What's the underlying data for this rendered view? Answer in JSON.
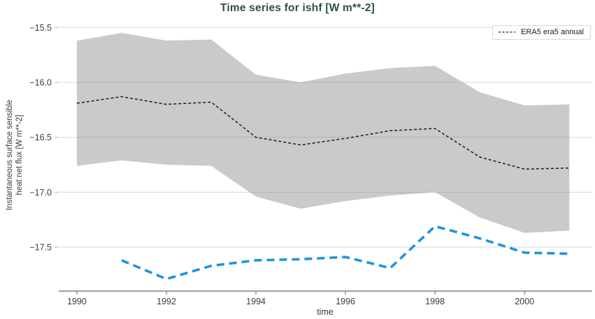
{
  "chart_data": {
    "type": "line",
    "title": "Time series for ishf [W m**-2]",
    "xlabel": "time",
    "ylabel_lines": [
      "Instantaneous surface sensible",
      "heat net flux [W m**-2]"
    ],
    "xlim": [
      1989.61,
      2001.48
    ],
    "ylim": [
      -17.9,
      -15.46
    ],
    "grid": "horizontal-only",
    "x_ticks": {
      "values": [
        1990,
        1992,
        1994,
        1996,
        1998,
        2000
      ],
      "labels": [
        "1990",
        "1992",
        "1994",
        "1996",
        "1998",
        "2000"
      ]
    },
    "y_ticks": {
      "values": [
        -15.5,
        -16.0,
        -16.5,
        -17.0,
        -17.5
      ],
      "labels": [
        "−15.5",
        "−16.0",
        "−16.5",
        "−17.0",
        "−17.5"
      ]
    },
    "legend": {
      "position": "top-right",
      "entries": [
        {
          "label": "ERA5 era5 annual",
          "line_style": "dashed",
          "color": "#1a1a1a"
        }
      ]
    },
    "colors": {
      "grid": "#d9d9d9",
      "axis": "#808080",
      "tick_label": "#3b3b3b",
      "title": "#2f4f4f",
      "band": "rgba(128,128,128,0.42)",
      "annual_line": "#1a1a1a",
      "blue_line": "#1e95dc"
    },
    "series": [
      {
        "name": "era5-annual-band",
        "type": "band",
        "color": "rgba(128,128,128,0.42)",
        "x": [
          1990,
          1991,
          1992,
          1993,
          1994,
          1995,
          1996,
          1997,
          1998,
          1999,
          2000,
          2001
        ],
        "upper": [
          -15.62,
          -15.55,
          -15.62,
          -15.61,
          -15.93,
          -16.0,
          -15.92,
          -15.87,
          -15.85,
          -16.09,
          -16.21,
          -16.2
        ],
        "lower": [
          -16.76,
          -16.71,
          -16.75,
          -16.76,
          -17.04,
          -17.15,
          -17.08,
          -17.03,
          -17.0,
          -17.23,
          -17.37,
          -17.35
        ]
      },
      {
        "name": "era5-annual-line",
        "type": "line",
        "style": "dashed",
        "color": "#1a1a1a",
        "width": 1.5,
        "dash": "4 3",
        "x": [
          1990,
          1991,
          1992,
          1993,
          1994,
          1995,
          1996,
          1997,
          1998,
          1999,
          2000,
          2001
        ],
        "y": [
          -16.19,
          -16.13,
          -16.2,
          -16.18,
          -16.5,
          -16.57,
          -16.51,
          -16.44,
          -16.42,
          -16.68,
          -16.79,
          -16.78
        ]
      },
      {
        "name": "blue-dashed-line",
        "type": "line",
        "style": "dashed",
        "color": "#1e95dc",
        "width": 3.6,
        "dash": "11 7",
        "x": [
          1991,
          1992,
          1993,
          1994,
          1995,
          1996,
          1997,
          1998,
          1999,
          2000,
          2001
        ],
        "y": [
          -17.62,
          -17.79,
          -17.67,
          -17.62,
          -17.61,
          -17.59,
          -17.69,
          -17.31,
          -17.42,
          -17.55,
          -17.56
        ]
      }
    ]
  }
}
